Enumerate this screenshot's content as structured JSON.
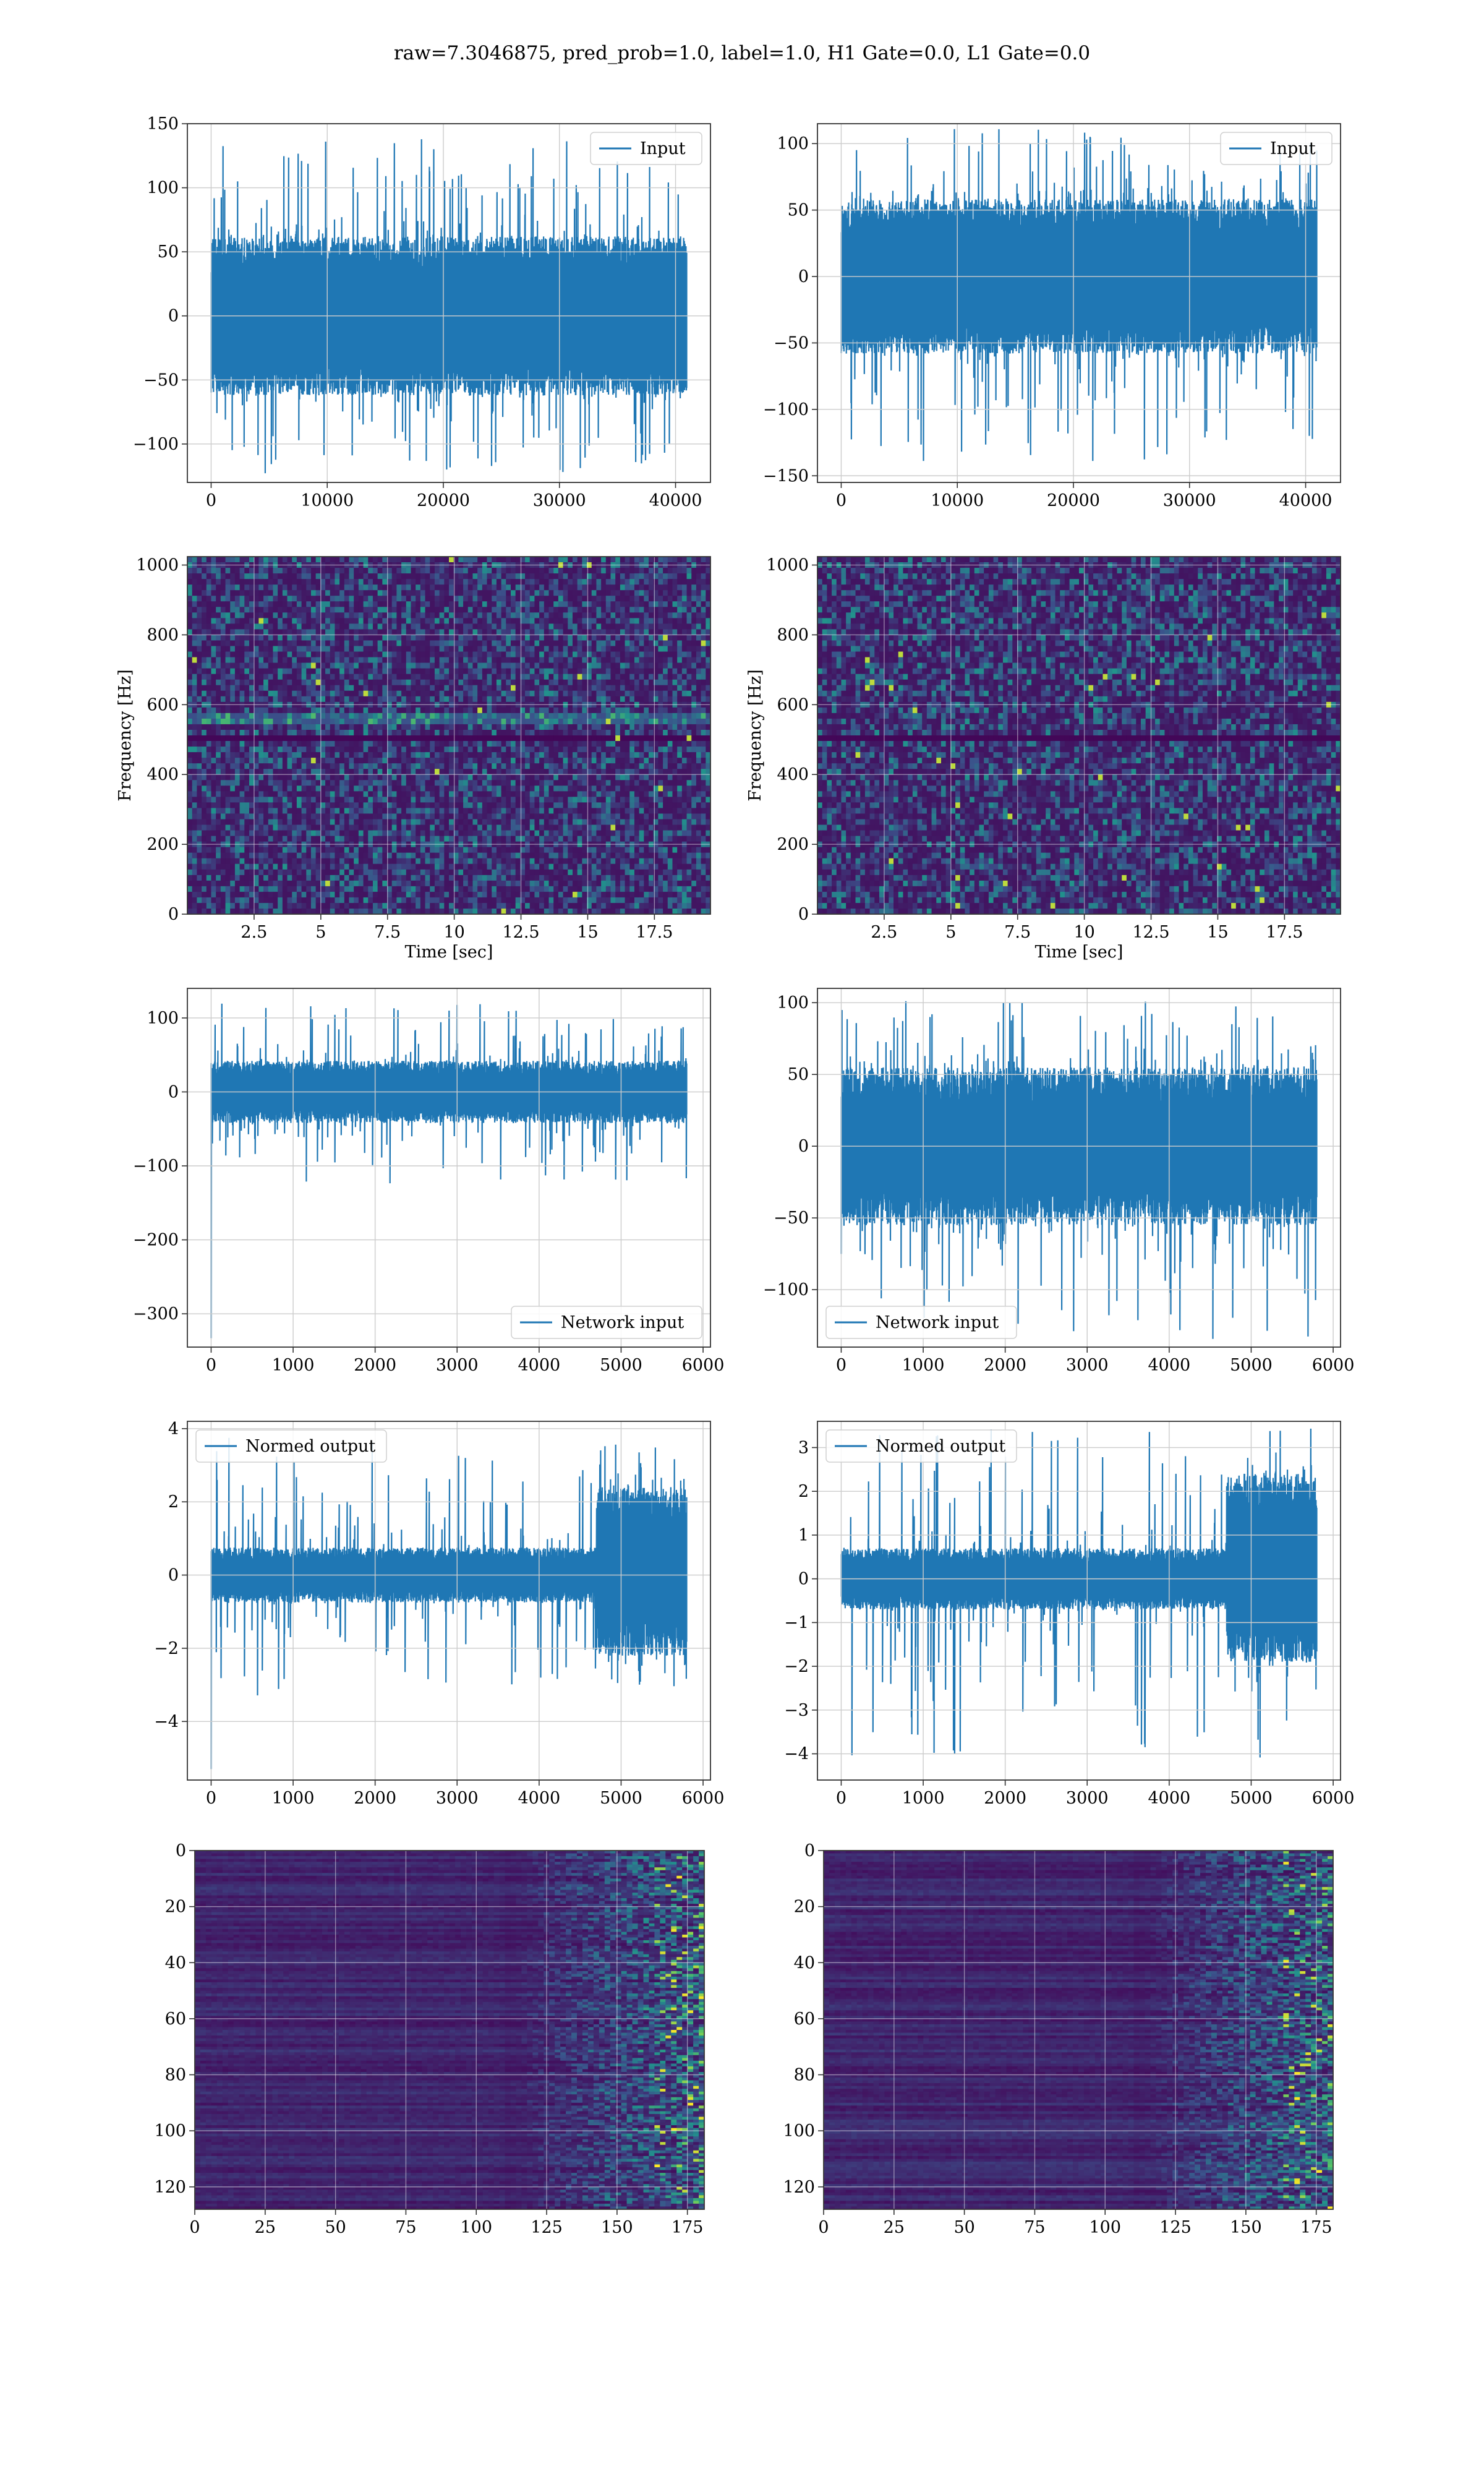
{
  "figure_title": "raw=7.3046875, pred_prob=1.0, label=1.0, H1 Gate=0.0, L1 Gate=0.0",
  "colors": {
    "line": "#1f77b4",
    "grid": "#cccccc",
    "axes": "#333333",
    "viridis_low": "#440154",
    "viridis_mid": "#21918c",
    "viridis_high": "#fde725"
  },
  "chart_data": [
    {
      "id": "input-h1",
      "type": "line",
      "legend": "Input",
      "legend_loc": "upper right",
      "xlim": [
        -2048,
        43008
      ],
      "ylim": [
        -130,
        150
      ],
      "xticks": [
        0,
        10000,
        20000,
        30000,
        40000
      ],
      "yticks": [
        -100,
        -50,
        0,
        50,
        100,
        150
      ],
      "signal": {
        "x_start": 0,
        "x_end": 40960,
        "center": 0,
        "band": [
          -62,
          62
        ],
        "peak_max": 138,
        "peak_min": -123,
        "n": 1400
      },
      "grid": true
    },
    {
      "id": "input-l1",
      "type": "line",
      "legend": "Input",
      "legend_loc": "upper right",
      "xlim": [
        -2048,
        43008
      ],
      "ylim": [
        -155,
        115
      ],
      "xticks": [
        0,
        10000,
        20000,
        30000,
        40000
      ],
      "yticks": [
        -150,
        -100,
        -50,
        0,
        50,
        100
      ],
      "signal": {
        "x_start": 0,
        "x_end": 40960,
        "center": 0,
        "band": [
          -58,
          58
        ],
        "peak_max": 112,
        "peak_min": -145,
        "n": 1400
      },
      "grid": true
    },
    {
      "id": "spec-h1",
      "type": "heatmap",
      "xlabel": "Time [sec]",
      "ylabel": "Frequency [Hz]",
      "xlim": [
        0,
        19.6
      ],
      "ylim": [
        0,
        1024
      ],
      "xticks": [
        2.5,
        5.0,
        7.5,
        10.0,
        12.5,
        15.0,
        17.5
      ],
      "yticks": [
        0,
        200,
        400,
        600,
        800,
        1000
      ],
      "line_features_hz": [
        500,
        560
      ],
      "grid": true
    },
    {
      "id": "spec-l1",
      "type": "heatmap",
      "xlabel": "Time [sec]",
      "ylabel": "Frequency [Hz]",
      "xlim": [
        0,
        19.6
      ],
      "ylim": [
        0,
        1024
      ],
      "xticks": [
        2.5,
        5.0,
        7.5,
        10.0,
        12.5,
        15.0,
        17.5
      ],
      "yticks": [
        0,
        200,
        400,
        600,
        800,
        1000
      ],
      "line_features_hz": [
        500
      ],
      "grid": true
    },
    {
      "id": "net-h1",
      "type": "line",
      "legend": "Network input",
      "legend_loc": "lower right",
      "xlim": [
        -290,
        6090
      ],
      "ylim": [
        -345,
        140
      ],
      "xticks": [
        0,
        1000,
        2000,
        3000,
        4000,
        5000,
        6000
      ],
      "yticks": [
        -300,
        -200,
        -100,
        0,
        100
      ],
      "signal": {
        "x_start": 0,
        "x_end": 5800,
        "center": 0,
        "band": [
          -42,
          42
        ],
        "peak_max": 120,
        "peak_min": -130,
        "spike_start": -333,
        "n": 1200
      },
      "grid": true
    },
    {
      "id": "net-l1",
      "type": "line",
      "legend": "Network input",
      "legend_loc": "lower left",
      "xlim": [
        -290,
        6090
      ],
      "ylim": [
        -140,
        110
      ],
      "xticks": [
        0,
        1000,
        2000,
        3000,
        4000,
        5000,
        6000
      ],
      "yticks": [
        -100,
        -50,
        0,
        50,
        100
      ],
      "signal": {
        "x_start": 0,
        "x_end": 5800,
        "center": 0,
        "band": [
          -55,
          55
        ],
        "peak_max": 102,
        "peak_min": -135,
        "n": 1200
      },
      "grid": true
    },
    {
      "id": "norm-h1",
      "type": "line",
      "legend": "Normed output",
      "legend_loc": "upper left",
      "xlim": [
        -290,
        6090
      ],
      "ylim": [
        -5.6,
        4.2
      ],
      "xticks": [
        0,
        1000,
        2000,
        3000,
        4000,
        5000,
        6000
      ],
      "yticks": [
        -4,
        -2,
        0,
        2,
        4
      ],
      "signal": {
        "x_start": 0,
        "x_end": 5800,
        "center": 0,
        "band": [
          -0.75,
          0.75
        ],
        "peak_max": 3.8,
        "peak_min": -3.3,
        "spike_start": -5.3,
        "burst_from": 4700,
        "burst_band": [
          -2.2,
          2.4
        ],
        "n": 1200
      },
      "grid": true
    },
    {
      "id": "norm-l1",
      "type": "line",
      "legend": "Normed output",
      "legend_loc": "upper left",
      "xlim": [
        -290,
        6090
      ],
      "ylim": [
        -4.6,
        3.6
      ],
      "xticks": [
        0,
        1000,
        2000,
        3000,
        4000,
        5000,
        6000
      ],
      "yticks": [
        -4,
        -3,
        -2,
        -1,
        0,
        1,
        2,
        3
      ],
      "signal": {
        "x_start": 0,
        "x_end": 5800,
        "center": 0,
        "band": [
          -0.7,
          0.7
        ],
        "peak_max": 3.5,
        "peak_min": -4.4,
        "burst_from": 4700,
        "burst_band": [
          -1.9,
          2.4
        ],
        "n": 1200
      },
      "grid": true
    },
    {
      "id": "feat-h1",
      "type": "heatmap",
      "xlim": [
        0,
        181
      ],
      "ylim": [
        128,
        0
      ],
      "xticks": [
        0,
        25,
        50,
        75,
        100,
        125,
        150,
        175
      ],
      "yticks": [
        0,
        20,
        40,
        60,
        80,
        100,
        120
      ],
      "grid": true
    },
    {
      "id": "feat-l1",
      "type": "heatmap",
      "xlim": [
        0,
        181
      ],
      "ylim": [
        128,
        0
      ],
      "xticks": [
        0,
        25,
        50,
        75,
        100,
        125,
        150,
        175
      ],
      "yticks": [
        0,
        20,
        40,
        60,
        80,
        100,
        120
      ],
      "grid": true
    }
  ]
}
